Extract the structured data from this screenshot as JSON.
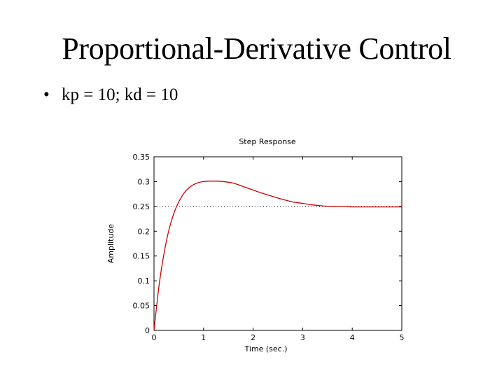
{
  "slide": {
    "title": "Proportional-Derivative Control",
    "bullets": [
      {
        "marker": "•",
        "text": "kp = 10; kd = 10"
      }
    ]
  },
  "chart_data": {
    "type": "line",
    "title": "Step Response",
    "xlabel": "Time (sec.)",
    "ylabel": "Amplitude",
    "xlim": [
      0,
      5
    ],
    "ylim": [
      0,
      0.35
    ],
    "xticks": [
      0,
      1,
      2,
      3,
      4,
      5
    ],
    "xtick_labels": [
      "0",
      "1",
      "2",
      "3",
      "4",
      "5"
    ],
    "yticks": [
      0,
      0.05,
      0.1,
      0.15,
      0.2,
      0.25,
      0.3,
      0.35
    ],
    "ytick_labels": [
      "0",
      "0.05",
      "0.1",
      "0.15",
      "0.2",
      "0.25",
      "0.3",
      "0.35"
    ],
    "grid": false,
    "reference_line": {
      "y": 0.25,
      "style": "dotted",
      "color": "#000000"
    },
    "series": [
      {
        "color": "#cc0000",
        "x": [
          0,
          0.1,
          0.2,
          0.3,
          0.4,
          0.5,
          0.6,
          0.7,
          0.8,
          0.9,
          1.0,
          1.2,
          1.4,
          1.6,
          1.8,
          2.0,
          2.2,
          2.4,
          2.6,
          2.8,
          3.0,
          3.2,
          3.4,
          3.6,
          3.8,
          4.0,
          4.2,
          4.4,
          4.6,
          4.8,
          5.0
        ],
        "y": [
          0,
          0.089,
          0.154,
          0.202,
          0.236,
          0.259,
          0.276,
          0.287,
          0.294,
          0.298,
          0.3,
          0.301,
          0.3,
          0.297,
          0.29,
          0.283,
          0.276,
          0.27,
          0.264,
          0.259,
          0.256,
          0.253,
          0.251,
          0.25,
          0.25,
          0.249,
          0.249,
          0.249,
          0.249,
          0.249,
          0.249
        ]
      }
    ]
  }
}
